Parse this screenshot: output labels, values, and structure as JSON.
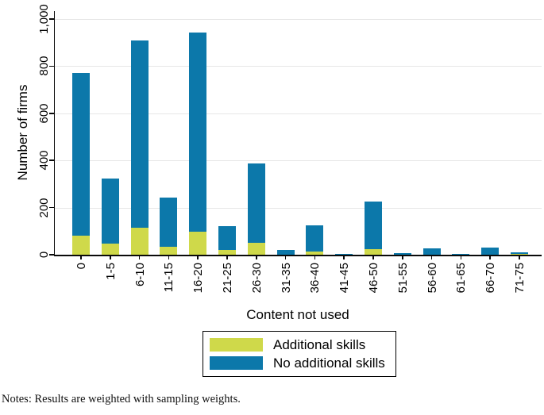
{
  "chart_data": {
    "type": "bar",
    "stacked": true,
    "title": "",
    "xlabel": "Content not used",
    "ylabel": "Number of firms",
    "categories": [
      "0",
      "1-5",
      "6-10",
      "11-15",
      "16-20",
      "21-25",
      "26-30",
      "31-35",
      "36-40",
      "41-45",
      "46-50",
      "51-55",
      "56-60",
      "61-65",
      "66-70",
      "71-75"
    ],
    "series": [
      {
        "name": "Additional skills",
        "color": "#cfd94a",
        "values": [
          82,
          46,
          114,
          35,
          96,
          20,
          50,
          0,
          13,
          0,
          24,
          0,
          0,
          0,
          0,
          3
        ]
      },
      {
        "name": "No additional skills",
        "color": "#0c78aa",
        "values": [
          688,
          276,
          794,
          209,
          848,
          100,
          338,
          21,
          112,
          5,
          203,
          7,
          26,
          3,
          30,
          7
        ]
      }
    ],
    "totals": [
      770,
      322,
      908,
      244,
      944,
      120,
      388,
      21,
      125,
      5,
      227,
      7,
      26,
      3,
      30,
      10
    ],
    "ylim": [
      0,
      1034
    ],
    "ytick_labels": [
      "0",
      "200",
      "400",
      "600",
      "800",
      "1,000"
    ],
    "ytick_values": [
      0,
      200,
      400,
      600,
      800,
      1000
    ],
    "grid": true,
    "legend_position": "bottom-center"
  },
  "legend": {
    "items": [
      {
        "label": "Additional skills",
        "color": "#cfd94a"
      },
      {
        "label": "No additional skills",
        "color": "#0c78aa"
      }
    ]
  },
  "notes": "Notes: Results are weighted with sampling weights.",
  "colors": {
    "background": "#ffffff",
    "grid": "#e6e6e6",
    "axis": "#0a0a0a",
    "additional_skills": "#cfd94a",
    "no_additional_skills": "#0c78aa"
  }
}
